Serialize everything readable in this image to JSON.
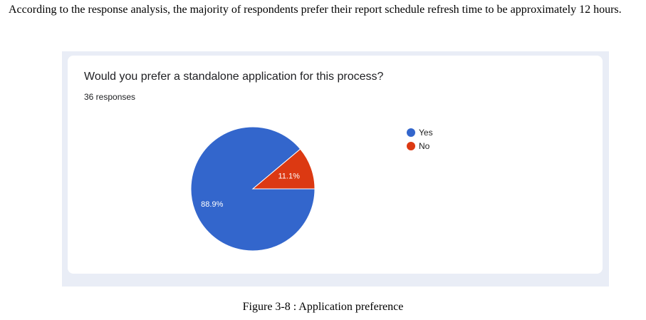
{
  "intro_text": "According to the response analysis, the majority of respondents prefer their report schedule refresh time to be approximately 12 hours.",
  "question": {
    "title": "Would you prefer a standalone application for this process?",
    "responses": "36 responses"
  },
  "chart_data": {
    "type": "pie",
    "labels": [
      "Yes",
      "No"
    ],
    "values": [
      88.9,
      11.1
    ],
    "value_labels": [
      "88.9%",
      "11.1%"
    ],
    "colors": [
      "#3366cc",
      "#dc3912"
    ],
    "legend_position": "right"
  },
  "caption": "Figure 3-8 : Application preference"
}
